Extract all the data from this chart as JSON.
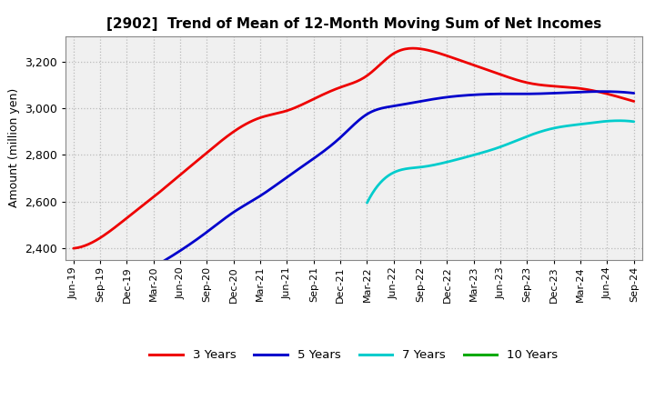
{
  "title": "[2902]  Trend of Mean of 12-Month Moving Sum of Net Incomes",
  "ylabel": "Amount (million yen)",
  "background_color": "#ffffff",
  "plot_bg_color": "#f0f0f0",
  "grid_color": "#bbbbbb",
  "ylim": [
    2350,
    3310
  ],
  "yticks": [
    2400,
    2600,
    2800,
    3000,
    3200
  ],
  "x_labels": [
    "Jun-19",
    "Sep-19",
    "Dec-19",
    "Mar-20",
    "Jun-20",
    "Sep-20",
    "Dec-20",
    "Mar-21",
    "Jun-21",
    "Sep-21",
    "Dec-21",
    "Mar-22",
    "Jun-22",
    "Sep-22",
    "Dec-22",
    "Mar-23",
    "Jun-23",
    "Sep-23",
    "Dec-23",
    "Mar-24",
    "Jun-24",
    "Sep-24"
  ],
  "series": {
    "3 Years": {
      "color": "#ee0000",
      "data_x": [
        0,
        1,
        2,
        3,
        4,
        5,
        6,
        7,
        8,
        9,
        10,
        11,
        12,
        13,
        14,
        15,
        16,
        17,
        18,
        19,
        20,
        21
      ],
      "data_y": [
        2400,
        2445,
        2530,
        2620,
        2715,
        2810,
        2900,
        2960,
        2990,
        3040,
        3090,
        3140,
        3235,
        3255,
        3225,
        3185,
        3145,
        3110,
        3095,
        3085,
        3062,
        3030
      ]
    },
    "5 Years": {
      "color": "#0000cc",
      "data_x": [
        3,
        4,
        5,
        6,
        7,
        8,
        9,
        10,
        11,
        12,
        13,
        14,
        15,
        16,
        17,
        18,
        19,
        20,
        21
      ],
      "data_y": [
        2320,
        2390,
        2470,
        2555,
        2625,
        2705,
        2785,
        2875,
        2975,
        3010,
        3030,
        3048,
        3058,
        3062,
        3062,
        3065,
        3070,
        3072,
        3065
      ]
    },
    "7 Years": {
      "color": "#00cccc",
      "data_x": [
        11,
        12,
        13,
        14,
        15,
        16,
        17,
        18,
        19,
        20,
        21
      ],
      "data_y": [
        2595,
        2725,
        2748,
        2770,
        2800,
        2835,
        2880,
        2915,
        2932,
        2945,
        2943
      ]
    },
    "10 Years": {
      "color": "#00aa00",
      "data_x": [],
      "data_y": []
    }
  },
  "legend_entries": [
    "3 Years",
    "5 Years",
    "7 Years",
    "10 Years"
  ],
  "legend_colors": [
    "#ee0000",
    "#0000cc",
    "#00cccc",
    "#00aa00"
  ]
}
